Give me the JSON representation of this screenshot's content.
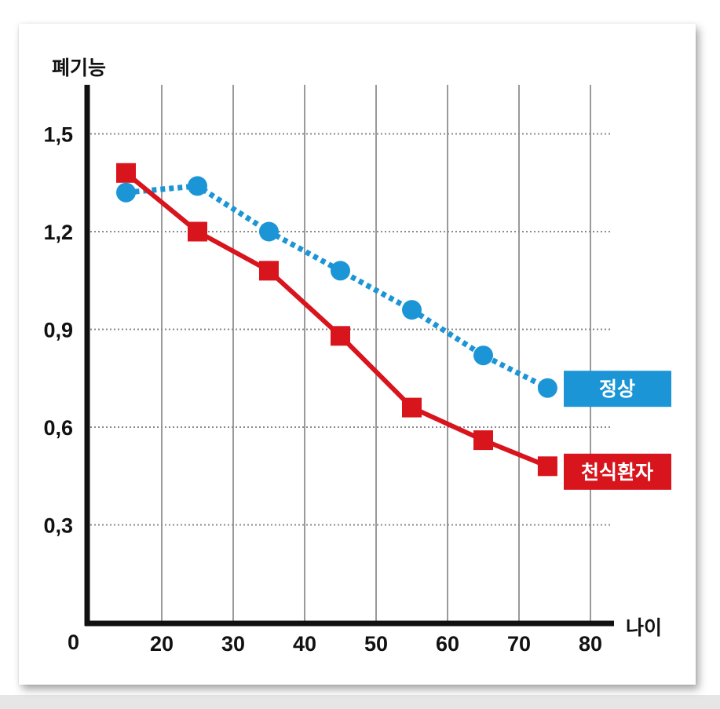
{
  "chart_data": {
    "type": "line",
    "ylabel": "폐기능",
    "xlabel": "나이",
    "origin_label": "0",
    "x_ticks": [
      20,
      30,
      40,
      50,
      60,
      70,
      80
    ],
    "y_ticks": [
      "0,3",
      "0,6",
      "0,9",
      "1,2",
      "1,5"
    ],
    "y_tick_values": [
      0.3,
      0.6,
      0.9,
      1.2,
      1.5
    ],
    "xlim": [
      10,
      80
    ],
    "ylim": [
      0,
      1.5
    ],
    "grid": {
      "vertical": "solid",
      "horizontal": "dotted"
    },
    "series": [
      {
        "name": "정상",
        "color": "#1b95d6",
        "marker": "circle",
        "line_style": "dotted",
        "x": [
          15,
          25,
          35,
          45,
          55,
          65,
          74
        ],
        "values": [
          1.32,
          1.34,
          1.2,
          1.08,
          0.96,
          0.82,
          0.72
        ]
      },
      {
        "name": "천식환자",
        "color": "#d8141d",
        "marker": "square",
        "line_style": "solid",
        "x": [
          15,
          25,
          35,
          45,
          55,
          65,
          74
        ],
        "values": [
          1.38,
          1.2,
          1.08,
          0.88,
          0.66,
          0.56,
          0.48
        ]
      }
    ],
    "legend_placement": "right of line ends"
  }
}
